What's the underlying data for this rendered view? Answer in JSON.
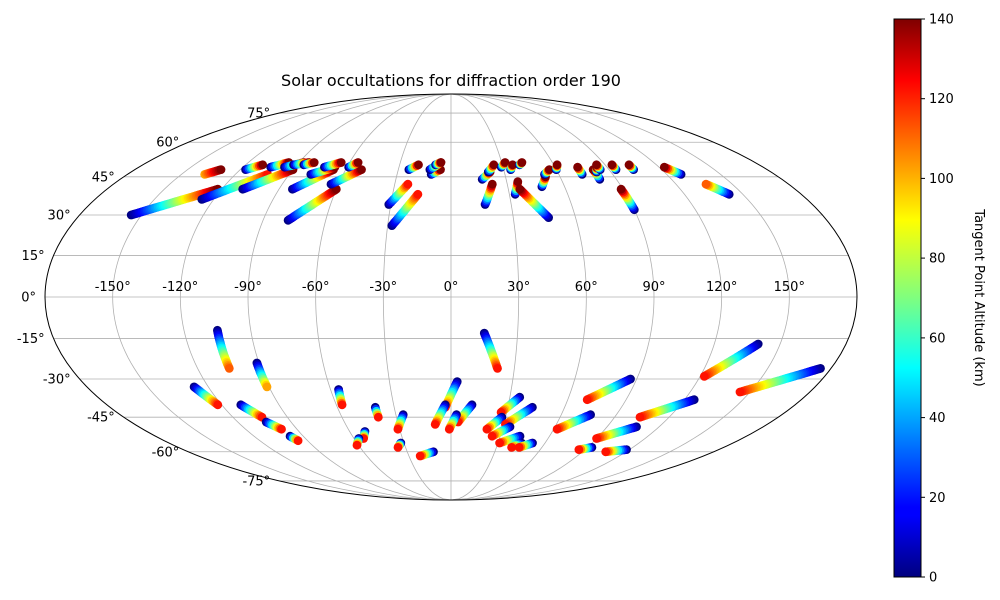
{
  "chart_data": {
    "type": "scatter",
    "projection": "mollweide",
    "title": "Solar occultations for diffraction order 190",
    "xlabel": "",
    "ylabel": "",
    "longitude_ticks": [
      "-150°",
      "-120°",
      "-90°",
      "-60°",
      "-30°",
      "0°",
      "30°",
      "60°",
      "90°",
      "120°",
      "150°"
    ],
    "latitude_ticks": [
      "75°",
      "60°",
      "45°",
      "30°",
      "15°",
      "0°",
      "-15°",
      "-30°",
      "-45°",
      "-60°",
      "-75°"
    ],
    "grid": true,
    "colorbar": {
      "label": "Tangent Point Altitude (km)",
      "ticks": [
        "0",
        "20",
        "40",
        "60",
        "80",
        "100",
        "120",
        "140"
      ],
      "range": [
        0,
        140
      ],
      "colormap": "jet"
    },
    "tracks": [
      {
        "lon": [
          -155,
          -122
        ],
        "lat": [
          30,
          40
        ],
        "alt": [
          0,
          140
        ]
      },
      {
        "lon": [
          -137,
          -131
        ],
        "lat": [
          46,
          48
        ],
        "alt": [
          100,
          140
        ]
      },
      {
        "lon": [
          -126,
          -102
        ],
        "lat": [
          36,
          46
        ],
        "alt": [
          0,
          120
        ]
      },
      {
        "lon": [
          -117,
          -110
        ],
        "lat": [
          48,
          50
        ],
        "alt": [
          0,
          140
        ]
      },
      {
        "lon": [
          -109,
          -90
        ],
        "lat": [
          40,
          48
        ],
        "alt": [
          0,
          140
        ]
      },
      {
        "lon": [
          -104,
          -96
        ],
        "lat": [
          49,
          51
        ],
        "alt": [
          0,
          140
        ]
      },
      {
        "lon": [
          -96,
          -87
        ],
        "lat": [
          49,
          51
        ],
        "alt": [
          0,
          140
        ]
      },
      {
        "lon": [
          -92,
          -84
        ],
        "lat": [
          50,
          51
        ],
        "alt": [
          0,
          140
        ]
      },
      {
        "lon": [
          -86,
          -81
        ],
        "lat": [
          50,
          51
        ],
        "alt": [
          0,
          140
        ]
      },
      {
        "lon": [
          -83,
          -67
        ],
        "lat": [
          40,
          48
        ],
        "alt": [
          0,
          140
        ]
      },
      {
        "lon": [
          -78,
          -60
        ],
        "lat": [
          28,
          40
        ],
        "alt": [
          0,
          140
        ]
      },
      {
        "lon": [
          -78,
          -67
        ],
        "lat": [
          46,
          49
        ],
        "alt": [
          0,
          140
        ]
      },
      {
        "lon": [
          -73,
          -65
        ],
        "lat": [
          49,
          51
        ],
        "alt": [
          0,
          140
        ]
      },
      {
        "lon": [
          -64,
          -51
        ],
        "lat": [
          42,
          48
        ],
        "alt": [
          0,
          140
        ]
      },
      {
        "lon": [
          -59,
          -55
        ],
        "lat": [
          49,
          51
        ],
        "alt": [
          0,
          140
        ]
      },
      {
        "lon": [
          -31,
          -23
        ],
        "lat": [
          34,
          42
        ],
        "alt": [
          0,
          120
        ]
      },
      {
        "lon": [
          -28,
          -17
        ],
        "lat": [
          26,
          38
        ],
        "alt": [
          0,
          120
        ]
      },
      {
        "lon": [
          -24,
          -19
        ],
        "lat": [
          48,
          50
        ],
        "alt": [
          0,
          140
        ]
      },
      {
        "lon": [
          -11,
          -6
        ],
        "lat": [
          46,
          48
        ],
        "alt": [
          0,
          140
        ]
      },
      {
        "lon": [
          -12,
          -6
        ],
        "lat": [
          48,
          51
        ],
        "alt": [
          0,
          140
        ]
      },
      {
        "lon": [
          -9,
          -6
        ],
        "lat": [
          50,
          51
        ],
        "alt": [
          0,
          140
        ]
      },
      {
        "lon": [
          17,
          22
        ],
        "lat": [
          34,
          42
        ],
        "alt": [
          0,
          140
        ]
      },
      {
        "lon": [
          17,
          22
        ],
        "lat": [
          44,
          47
        ],
        "alt": [
          0,
          140
        ]
      },
      {
        "lon": [
          21,
          25
        ],
        "lat": [
          47,
          50
        ],
        "alt": [
          0,
          140
        ]
      },
      {
        "lon": [
          29,
          32
        ],
        "lat": [
          49,
          51
        ],
        "alt": [
          0,
          140
        ]
      },
      {
        "lon": [
          33,
          36
        ],
        "lat": [
          38,
          43
        ],
        "alt": [
          0,
          140
        ]
      },
      {
        "lon": [
          34,
          36
        ],
        "lat": [
          48,
          50
        ],
        "alt": [
          0,
          140
        ]
      },
      {
        "lon": [
          47,
          36
        ],
        "lat": [
          29,
          40
        ],
        "alt": [
          0,
          140
        ]
      },
      {
        "lon": [
          40,
          42
        ],
        "lat": [
          50,
          51
        ],
        "alt": [
          0,
          140
        ]
      },
      {
        "lon": [
          48,
          52
        ],
        "lat": [
          41,
          45
        ],
        "alt": [
          0,
          140
        ]
      },
      {
        "lon": [
          52,
          56
        ],
        "lat": [
          46,
          48
        ],
        "alt": [
          0,
          140
        ]
      },
      {
        "lon": [
          60,
          62
        ],
        "lat": [
          48,
          50
        ],
        "alt": [
          0,
          140
        ]
      },
      {
        "lon": [
          73,
          73
        ],
        "lat": [
          46,
          49
        ],
        "alt": [
          0,
          140
        ]
      },
      {
        "lon": [
          81,
          81
        ],
        "lat": [
          44,
          48
        ],
        "alt": [
          0,
          140
        ]
      },
      {
        "lon": [
          82,
          84
        ],
        "lat": [
          47,
          49
        ],
        "alt": [
          0,
          140
        ]
      },
      {
        "lon": [
          85,
          85
        ],
        "lat": [
          48,
          50
        ],
        "alt": [
          0,
          140
        ]
      },
      {
        "lon": [
          90,
          89
        ],
        "lat": [
          32,
          40
        ],
        "alt": [
          0,
          140
        ]
      },
      {
        "lon": [
          94,
          94
        ],
        "lat": [
          48,
          50
        ],
        "alt": [
          0,
          140
        ]
      },
      {
        "lon": [
          104,
          104
        ],
        "lat": [
          48,
          50
        ],
        "alt": [
          0,
          140
        ]
      },
      {
        "lon": [
          128,
          123
        ],
        "lat": [
          46,
          49
        ],
        "alt": [
          0,
          140
        ]
      },
      {
        "lon": [
          143,
          136
        ],
        "lat": [
          38,
          42
        ],
        "alt": [
          0,
          110
        ]
      },
      {
        "lon": [
          -105,
          -105
        ],
        "lat": [
          -12,
          -26
        ],
        "alt": [
          0,
          110
        ]
      },
      {
        "lon": [
          -91,
          -91
        ],
        "lat": [
          -24,
          -33
        ],
        "alt": [
          0,
          100
        ]
      },
      {
        "lon": [
          -127,
          -122
        ],
        "lat": [
          -33,
          -40
        ],
        "alt": [
          0,
          120
        ]
      },
      {
        "lon": [
          -110,
          -104
        ],
        "lat": [
          -40,
          -45
        ],
        "alt": [
          0,
          120
        ]
      },
      {
        "lon": [
          -104,
          -99
        ],
        "lat": [
          -47,
          -50
        ],
        "alt": [
          0,
          120
        ]
      },
      {
        "lon": [
          -98,
          -96
        ],
        "lat": [
          -53,
          -55
        ],
        "alt": [
          0,
          120
        ]
      },
      {
        "lon": [
          -56,
          -57
        ],
        "lat": [
          -34,
          -40
        ],
        "alt": [
          0,
          120
        ]
      },
      {
        "lon": [
          -51,
          -54
        ],
        "lat": [
          -51,
          -54
        ],
        "alt": [
          0,
          120
        ]
      },
      {
        "lon": [
          -57,
          -61
        ],
        "lat": [
          -54,
          -57
        ],
        "alt": [
          0,
          120
        ]
      },
      {
        "lon": [
          -40,
          -40
        ],
        "lat": [
          -41,
          -45
        ],
        "alt": [
          0,
          120
        ]
      },
      {
        "lon": [
          -26,
          -31
        ],
        "lat": [
          -44,
          -50
        ],
        "alt": [
          0,
          120
        ]
      },
      {
        "lon": [
          -32,
          -35
        ],
        "lat": [
          -56,
          -58
        ],
        "alt": [
          0,
          120
        ]
      },
      {
        "lon": [
          3,
          -3
        ],
        "lat": [
          -31,
          -41
        ],
        "alt": [
          0,
          120
        ]
      },
      {
        "lon": [
          -3,
          -9
        ],
        "lat": [
          -40,
          -48
        ],
        "alt": [
          0,
          120
        ]
      },
      {
        "lon": [
          11,
          4
        ],
        "lat": [
          -40,
          -47
        ],
        "alt": [
          0,
          120
        ]
      },
      {
        "lon": [
          3,
          -1
        ],
        "lat": [
          -44,
          -50
        ],
        "alt": [
          0,
          120
        ]
      },
      {
        "lon": [
          -12,
          -22
        ],
        "lat": [
          -60,
          -62
        ],
        "alt": [
          0,
          120
        ]
      },
      {
        "lon": [
          15,
          22
        ],
        "lat": [
          -13,
          -26
        ],
        "alt": [
          0,
          120
        ]
      },
      {
        "lon": [
          35,
          27
        ],
        "lat": [
          -37,
          -43
        ],
        "alt": [
          0,
          120
        ]
      },
      {
        "lon": [
          28,
          21
        ],
        "lat": [
          -45,
          -50
        ],
        "alt": [
          0,
          120
        ]
      },
      {
        "lon": [
          43,
          31
        ],
        "lat": [
          -41,
          -48
        ],
        "alt": [
          0,
          120
        ]
      },
      {
        "lon": [
          34,
          25
        ],
        "lat": [
          -49,
          -53
        ],
        "alt": [
          0,
          120
        ]
      },
      {
        "lon": [
          42,
          31
        ],
        "lat": [
          -53,
          -56
        ],
        "alt": [
          0,
          120
        ]
      },
      {
        "lon": [
          45,
          40
        ],
        "lat": [
          -56,
          -58
        ],
        "alt": [
          0,
          120
        ]
      },
      {
        "lon": [
          52,
          45
        ],
        "lat": [
          -56,
          -58
        ],
        "alt": [
          0,
          120
        ]
      },
      {
        "lon": [
          87,
          70
        ],
        "lat": [
          -30,
          -38
        ],
        "alt": [
          0,
          120
        ]
      },
      {
        "lon": [
          76,
          62
        ],
        "lat": [
          -44,
          -50
        ],
        "alt": [
          0,
          120
        ]
      },
      {
        "lon": [
          93,
          86
        ],
        "lat": [
          -58,
          -59
        ],
        "alt": [
          0,
          120
        ]
      },
      {
        "lon": [
          107,
          90
        ],
        "lat": [
          -49,
          -54
        ],
        "alt": [
          0,
          120
        ]
      },
      {
        "lon": [
          125,
          104
        ],
        "lat": [
          -38,
          -45
        ],
        "alt": [
          0,
          120
        ]
      },
      {
        "lon": [
          118,
          106
        ],
        "lat": [
          -59,
          -60
        ],
        "alt": [
          0,
          120
        ]
      },
      {
        "lon": [
          140,
          122
        ],
        "lat": [
          -17,
          -29
        ],
        "alt": [
          0,
          120
        ]
      },
      {
        "lon": [
          175,
          145
        ],
        "lat": [
          -26,
          -35
        ],
        "alt": [
          0,
          120
        ]
      }
    ]
  }
}
